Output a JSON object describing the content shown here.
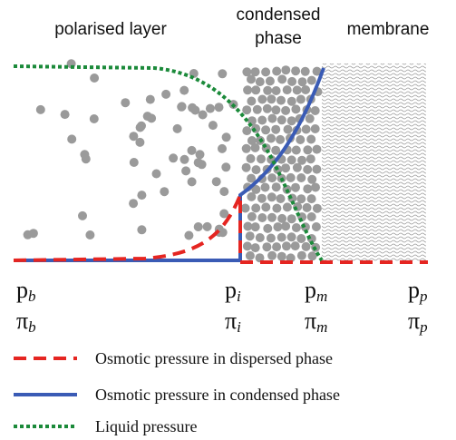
{
  "regions": {
    "polarised": "polarised layer",
    "condensed": [
      "condensed",
      "phase"
    ],
    "membrane": "membrane"
  },
  "positions": [
    {
      "p": {
        "base": "p",
        "sub": "b"
      },
      "pi": {
        "base": "π",
        "sub": "b"
      }
    },
    {
      "p": {
        "base": "p",
        "sub": "i"
      },
      "pi": {
        "base": "π",
        "sub": "i"
      }
    },
    {
      "p": {
        "base": "p",
        "sub": "m"
      },
      "pi": {
        "base": "π",
        "sub": "m"
      }
    },
    {
      "p": {
        "base": "p",
        "sub": "p"
      },
      "pi": {
        "base": "π",
        "sub": "p"
      }
    }
  ],
  "legend": [
    "Osmotic pressure in dispersed phase",
    "Osmotic pressure in condensed phase",
    "Liquid pressure"
  ]
}
